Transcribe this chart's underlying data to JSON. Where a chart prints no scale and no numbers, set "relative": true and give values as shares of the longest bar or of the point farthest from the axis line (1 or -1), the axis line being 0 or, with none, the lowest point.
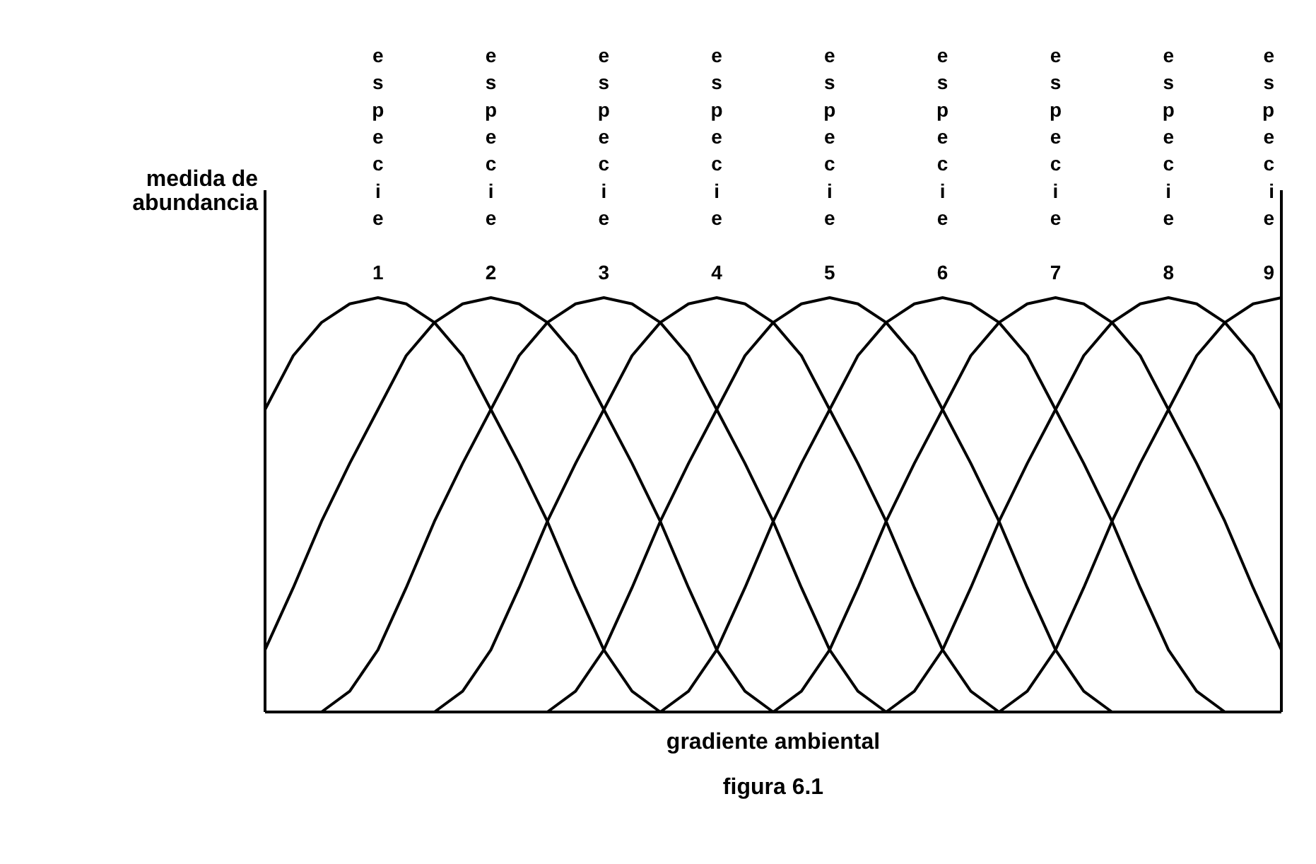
{
  "chart_data": {
    "type": "line",
    "relative": true,
    "xlabel": "gradiente ambiental",
    "ylabel": "medida de abundancia",
    "annotations": [
      "figura 6.1"
    ],
    "legend": false,
    "marker": "none",
    "line_style": "solid",
    "categories": [
      null,
      null,
      null,
      null,
      null,
      null,
      null,
      null,
      null,
      null,
      null,
      null,
      null,
      null,
      null,
      null,
      null,
      null,
      null,
      null,
      null,
      null,
      null,
      null,
      null,
      null,
      null,
      null,
      null,
      null,
      null,
      null,
      null,
      null,
      null,
      null,
      null
    ],
    "series": [
      {
        "name": "especie 1",
        "color": "#000000",
        "values": [
          0.73,
          0.86,
          0.94,
          0.985,
          1,
          0.985,
          0.94,
          0.86,
          0.73,
          0.6,
          0.46,
          0.3,
          0.15,
          0.05,
          0,
          null,
          null,
          null,
          null,
          null,
          null,
          null,
          null,
          null,
          null,
          null,
          null,
          null,
          null,
          null,
          null,
          null,
          null,
          null,
          null,
          null,
          null
        ]
      },
      {
        "name": "especie 2",
        "color": "#000000",
        "values": [
          0.15,
          0.3,
          0.46,
          0.6,
          0.73,
          0.86,
          0.94,
          0.985,
          1,
          0.985,
          0.94,
          0.86,
          0.73,
          0.6,
          0.46,
          0.3,
          0.15,
          0.05,
          0,
          null,
          null,
          null,
          null,
          null,
          null,
          null,
          null,
          null,
          null,
          null,
          null,
          null,
          null,
          null,
          null,
          null,
          null
        ]
      },
      {
        "name": "especie 3",
        "color": "#000000",
        "values": [
          null,
          null,
          0,
          0.05,
          0.15,
          0.3,
          0.46,
          0.6,
          0.73,
          0.86,
          0.94,
          0.985,
          1,
          0.985,
          0.94,
          0.86,
          0.73,
          0.6,
          0.46,
          0.3,
          0.15,
          0.05,
          0,
          null,
          null,
          null,
          null,
          null,
          null,
          null,
          null,
          null,
          null,
          null,
          null,
          null,
          null
        ]
      },
      {
        "name": "especie 4",
        "color": "#000000",
        "values": [
          null,
          null,
          null,
          null,
          null,
          null,
          0,
          0.05,
          0.15,
          0.3,
          0.46,
          0.6,
          0.73,
          0.86,
          0.94,
          0.985,
          1,
          0.985,
          0.94,
          0.86,
          0.73,
          0.6,
          0.46,
          0.3,
          0.15,
          0.05,
          0,
          null,
          null,
          null,
          null,
          null,
          null,
          null,
          null,
          null,
          null
        ]
      },
      {
        "name": "especie 5",
        "color": "#000000",
        "values": [
          null,
          null,
          null,
          null,
          null,
          null,
          null,
          null,
          null,
          null,
          0,
          0.05,
          0.15,
          0.3,
          0.46,
          0.6,
          0.73,
          0.86,
          0.94,
          0.985,
          1,
          0.985,
          0.94,
          0.86,
          0.73,
          0.6,
          0.46,
          0.3,
          0.15,
          0.05,
          0,
          null,
          null,
          null,
          null,
          null,
          null
        ]
      },
      {
        "name": "especie 6",
        "color": "#000000",
        "values": [
          null,
          null,
          null,
          null,
          null,
          null,
          null,
          null,
          null,
          null,
          null,
          null,
          null,
          null,
          0,
          0.05,
          0.15,
          0.3,
          0.46,
          0.6,
          0.73,
          0.86,
          0.94,
          0.985,
          1,
          0.985,
          0.94,
          0.86,
          0.73,
          0.6,
          0.46,
          0.3,
          0.15,
          0.05,
          0,
          null,
          null
        ]
      },
      {
        "name": "especie 7",
        "color": "#000000",
        "values": [
          null,
          null,
          null,
          null,
          null,
          null,
          null,
          null,
          null,
          null,
          null,
          null,
          null,
          null,
          null,
          null,
          null,
          null,
          0,
          0.05,
          0.15,
          0.3,
          0.46,
          0.6,
          0.73,
          0.86,
          0.94,
          0.985,
          1,
          0.985,
          0.94,
          0.86,
          0.73,
          0.6,
          0.46,
          0.3,
          0.15
        ]
      },
      {
        "name": "especie 8",
        "color": "#000000",
        "values": [
          null,
          null,
          null,
          null,
          null,
          null,
          null,
          null,
          null,
          null,
          null,
          null,
          null,
          null,
          null,
          null,
          null,
          null,
          null,
          null,
          null,
          null,
          0,
          0.05,
          0.15,
          0.3,
          0.46,
          0.6,
          0.73,
          0.86,
          0.94,
          0.985,
          1,
          0.985,
          0.94,
          0.86,
          0.73
        ]
      },
      {
        "name": "especie 9",
        "color": "#000000",
        "values": [
          null,
          null,
          null,
          null,
          null,
          null,
          null,
          null,
          null,
          null,
          null,
          null,
          null,
          null,
          null,
          null,
          null,
          null,
          null,
          null,
          null,
          null,
          null,
          null,
          null,
          null,
          0,
          0.05,
          0.15,
          0.3,
          0.46,
          0.6,
          0.73,
          0.86,
          0.94,
          0.985,
          1
        ]
      }
    ]
  }
}
